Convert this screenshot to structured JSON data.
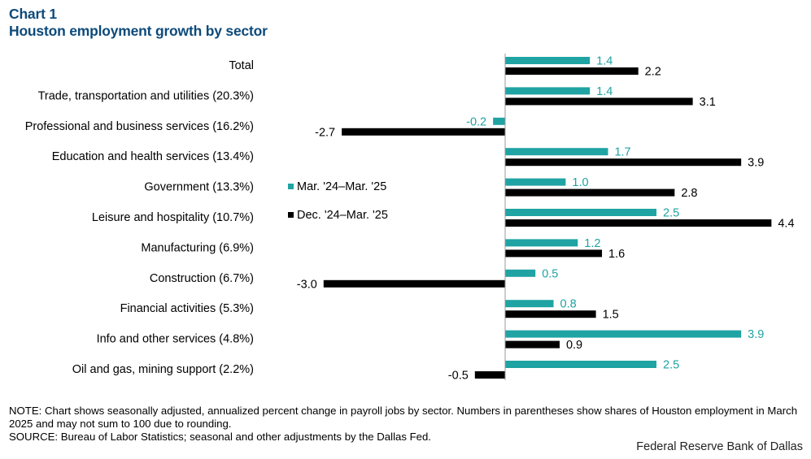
{
  "header": {
    "chart_number": "Chart 1",
    "title": "Houston employment growth by sector"
  },
  "footer": {
    "note": "NOTE: Chart shows seasonally adjusted, annualized percent change in payroll jobs by sector. Numbers in parentheses show shares of Houston employment in March 2025 and may not sum to 100 due to rounding.",
    "source": "SOURCE: Bureau of Labor Statistics; seasonal and other adjustments by the Dallas Fed.",
    "credit": "Federal Reserve Bank of Dallas"
  },
  "colors": {
    "series_1": "#1fa3a3",
    "series_2": "#000000"
  },
  "chart_data": {
    "type": "bar",
    "orientation": "horizontal",
    "title": "Houston employment growth by sector",
    "categories": [
      "Total",
      "Trade, transportation and utilities (20.3%)",
      "Professional and business services (16.2%)",
      "Education and health services (13.4%)",
      "Government (13.3%)",
      "Leisure and hospitality (10.7%)",
      "Manufacturing (6.9%)",
      "Construction (6.7%)",
      "Financial activities (5.3%)",
      "Info and other services (4.8%)",
      "Oil and gas, mining support (2.2%)"
    ],
    "series": [
      {
        "name": "Mar. '24–Mar. '25",
        "values": [
          1.4,
          1.4,
          -0.2,
          1.7,
          1.0,
          2.5,
          1.2,
          0.5,
          0.8,
          3.9,
          2.5
        ]
      },
      {
        "name": "Dec. '24–Mar. '25",
        "values": [
          2.2,
          3.1,
          -2.7,
          3.9,
          2.8,
          4.4,
          1.6,
          -3.0,
          1.5,
          0.9,
          -0.5
        ]
      }
    ],
    "data_labels": [
      [
        "1.4",
        "1.4",
        "-0.2",
        "1.7",
        "1.0",
        "2.5",
        "1.2",
        "0.5",
        "0.8",
        "3.9",
        "2.5"
      ],
      [
        "2.2",
        "3.1",
        "-2.7",
        "3.9",
        "2.8",
        "4.4",
        "1.6",
        "-3.0",
        "1.5",
        "0.9",
        "-0.5"
      ]
    ],
    "legend_placement": "middle-left",
    "grid": false
  }
}
